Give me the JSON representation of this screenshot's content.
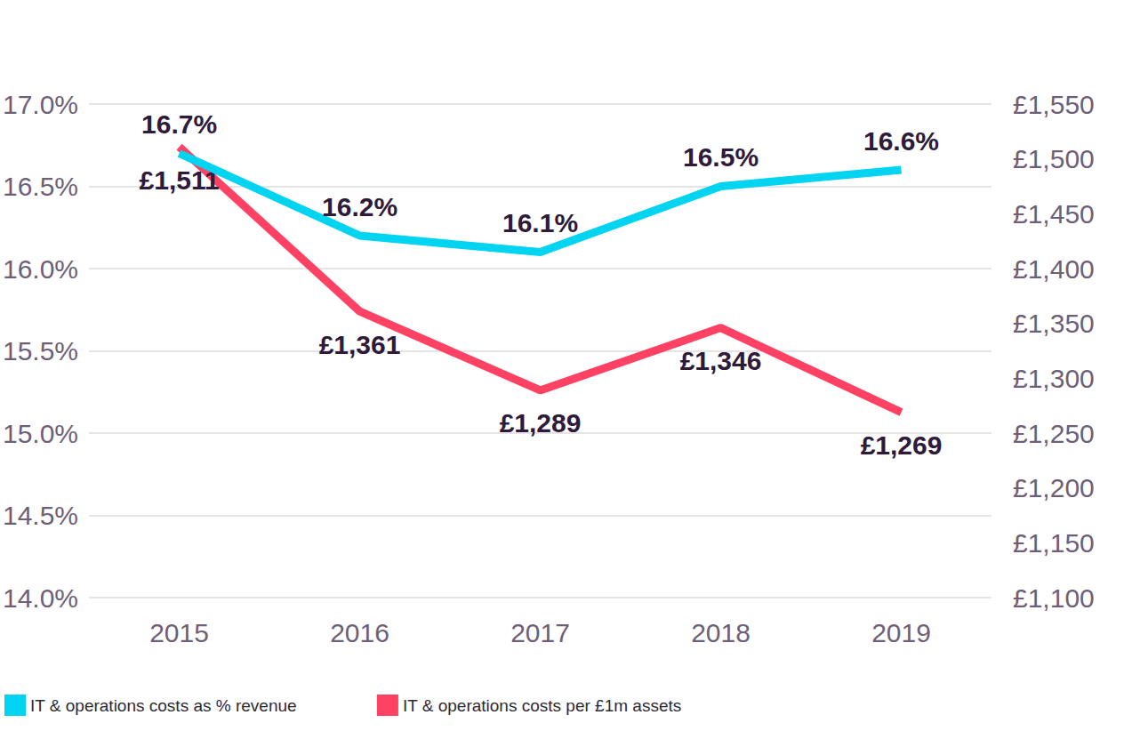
{
  "chart_data": {
    "type": "line",
    "categories": [
      "2015",
      "2016",
      "2017",
      "2018",
      "2019"
    ],
    "series": [
      {
        "name": "IT & operations costs as % revenue",
        "color": "#00d4f0",
        "values": [
          16.7,
          16.2,
          16.1,
          16.5,
          16.6
        ],
        "value_labels": [
          "16.7%",
          "16.2%",
          "16.1%",
          "16.5%",
          "16.6%"
        ]
      },
      {
        "name": "IT & operations costs per £1m assets",
        "color": "#ff4263",
        "axis": "y2",
        "values": [
          1511,
          1361,
          1289,
          1346,
          1269
        ],
        "value_labels": [
          "£1,511",
          "£1,361",
          "£1,289",
          "£1,346",
          "£1,269"
        ]
      }
    ],
    "ylim": [
      14,
      17
    ],
    "yticks": [
      {
        "value": 14,
        "label": "14.0%"
      },
      {
        "value": 14.5,
        "label": "14.5%"
      },
      {
        "value": 15,
        "label": "15.0%"
      },
      {
        "value": 15.5,
        "label": "15.5%"
      },
      {
        "value": 16,
        "label": "16.0%"
      },
      {
        "value": 16.5,
        "label": "16.5%"
      },
      {
        "value": 17,
        "label": "17.0%"
      }
    ],
    "y2lim": [
      1100,
      1550
    ],
    "y2ticks": [
      {
        "value": 1100,
        "label": "£1,100"
      },
      {
        "value": 1150,
        "label": "£1,150"
      },
      {
        "value": 1200,
        "label": "£1,200"
      },
      {
        "value": 1250,
        "label": "£1,250"
      },
      {
        "value": 1300,
        "label": "£1,300"
      },
      {
        "value": 1350,
        "label": "£1,350"
      },
      {
        "value": 1400,
        "label": "£1,400"
      },
      {
        "value": 1450,
        "label": "£1,450"
      },
      {
        "value": 1500,
        "label": "£1,500"
      },
      {
        "value": 1550,
        "label": "£1,550"
      }
    ],
    "grid": true,
    "legend": "bottom",
    "data_labels": true
  }
}
